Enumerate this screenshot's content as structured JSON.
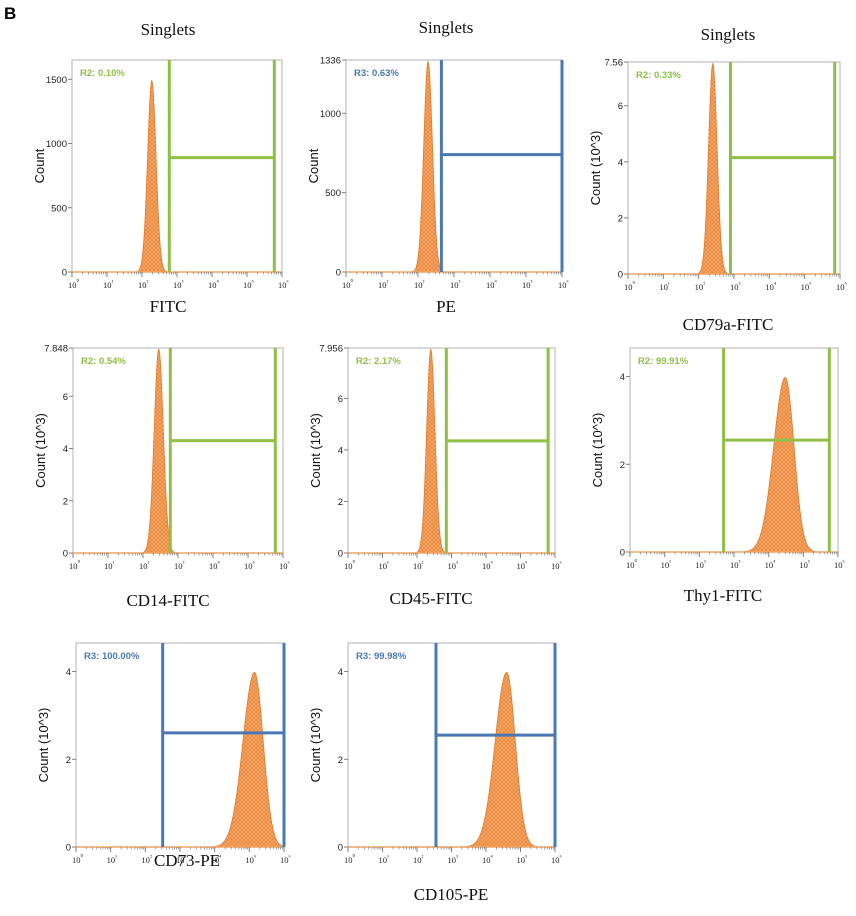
{
  "panel_label": "B",
  "colors": {
    "fill": "#f4a261",
    "hatch": "#e07a2c",
    "green_gate": "#8fbf45",
    "blue_gate": "#4a78b5",
    "axis": "#7f7f7f",
    "frame": "#b0b0b0"
  },
  "chart_data": [
    {
      "type": "area",
      "title": "Singlets",
      "xlabel": "FITC",
      "ylabel": "Count",
      "y_ticks": [
        "0",
        "500",
        "1000",
        "1500"
      ],
      "y_tick_values": [
        0,
        500,
        1000,
        1500
      ],
      "ylim": [
        0,
        1650
      ],
      "x_tick_exponents": [
        0,
        1,
        2,
        3,
        4,
        5,
        6
      ],
      "xlim_log10": [
        0,
        6
      ],
      "peak_log10": 2.28,
      "peak_width": 0.12,
      "gate": {
        "name": "R2",
        "label": "R2: 0.10%",
        "color": "green",
        "range_log10": [
          2.78,
          5.78
        ],
        "level": 890
      }
    },
    {
      "type": "area",
      "title": "Singlets",
      "xlabel": "PE",
      "ylabel": "Count",
      "y_ticks": [
        "0",
        "500",
        "1000",
        "1336"
      ],
      "y_tick_values": [
        0,
        500,
        1000,
        1336
      ],
      "ylim": [
        0,
        1336
      ],
      "x_tick_exponents": [
        0,
        1,
        2,
        3,
        4,
        5,
        6
      ],
      "xlim_log10": [
        0,
        6
      ],
      "peak_log10": 2.28,
      "peak_width": 0.12,
      "gate": {
        "name": "R3",
        "label": "R3: 0.63%",
        "color": "blue",
        "range_log10": [
          2.65,
          6.0
        ],
        "level": 740
      }
    },
    {
      "type": "area",
      "title": "Singlets",
      "xlabel": "CD79a-FITC",
      "ylabel": "Count (10^3)",
      "y_ticks": [
        "0",
        "2",
        "4",
        "6",
        "7.56"
      ],
      "y_tick_values": [
        0,
        2,
        4,
        6,
        7.56
      ],
      "ylim": [
        0,
        7.56
      ],
      "x_tick_exponents": [
        0,
        1,
        2,
        3,
        4,
        5,
        6
      ],
      "xlim_log10": [
        0,
        6
      ],
      "peak_log10": 2.4,
      "peak_width": 0.12,
      "gate": {
        "name": "R2",
        "label": "R2: 0.33%",
        "color": "green",
        "range_log10": [
          2.9,
          5.85
        ],
        "level": 4.15
      }
    },
    {
      "type": "area",
      "title": "",
      "xlabel": "CD14-FITC",
      "ylabel": "Count (10^3)",
      "y_ticks": [
        "0",
        "2",
        "4",
        "6",
        "7.848"
      ],
      "y_tick_values": [
        0,
        2,
        4,
        6,
        7.848
      ],
      "ylim": [
        0,
        7.848
      ],
      "x_tick_exponents": [
        0,
        1,
        2,
        3,
        4,
        5,
        6
      ],
      "xlim_log10": [
        0,
        6
      ],
      "peak_log10": 2.45,
      "peak_width": 0.13,
      "gate": {
        "name": "R2",
        "label": "R2: 0.54%",
        "color": "green",
        "range_log10": [
          2.78,
          5.78
        ],
        "level": 4.3
      }
    },
    {
      "type": "area",
      "title": "",
      "xlabel": "CD45-FITC",
      "ylabel": "Count (10^3)",
      "y_ticks": [
        "0",
        "2",
        "4",
        "6",
        "7.956"
      ],
      "y_tick_values": [
        0,
        2,
        4,
        6,
        7.956
      ],
      "ylim": [
        0,
        7.956
      ],
      "x_tick_exponents": [
        0,
        1,
        2,
        3,
        4,
        5,
        6
      ],
      "xlim_log10": [
        0,
        6
      ],
      "peak_log10": 2.4,
      "peak_width": 0.12,
      "gate": {
        "name": "R2",
        "label": "R2: 2.17%",
        "color": "green",
        "range_log10": [
          2.85,
          5.8
        ],
        "level": 4.35
      }
    },
    {
      "type": "area",
      "title": "",
      "xlabel": "Thy1-FITC",
      "ylabel": "Count (10^3)",
      "y_ticks": [
        "0",
        "2",
        "4"
      ],
      "y_tick_values": [
        0,
        2,
        4
      ],
      "ylim": [
        0,
        4.65
      ],
      "x_tick_exponents": [
        0,
        1,
        2,
        3,
        4,
        5,
        6
      ],
      "xlim_log10": [
        0,
        6
      ],
      "peak_log10": 4.48,
      "peak_width": 0.25,
      "gate": {
        "name": "R2",
        "label": "R2: 99.91%",
        "color": "green",
        "range_log10": [
          2.7,
          5.75
        ],
        "level": 2.55
      }
    },
    {
      "type": "area",
      "title": "",
      "xlabel": "CD73-PE",
      "ylabel": "Count (10^3)",
      "y_ticks": [
        "0",
        "2",
        "4"
      ],
      "y_tick_values": [
        0,
        2,
        4
      ],
      "ylim": [
        0,
        4.65
      ],
      "x_tick_exponents": [
        0,
        1,
        2,
        3,
        4,
        5,
        6
      ],
      "xlim_log10": [
        0,
        6
      ],
      "peak_log10": 5.15,
      "peak_width": 0.25,
      "gate": {
        "name": "R3",
        "label": "R3: 100.00%",
        "color": "blue",
        "range_log10": [
          2.5,
          6.0
        ],
        "level": 2.6
      }
    },
    {
      "type": "area",
      "title": "",
      "xlabel": "CD105-PE",
      "ylabel": "Count (10^3)",
      "y_ticks": [
        "0",
        "2",
        "4"
      ],
      "y_tick_values": [
        0,
        2,
        4
      ],
      "ylim": [
        0,
        4.65
      ],
      "x_tick_exponents": [
        0,
        1,
        2,
        3,
        4,
        5,
        6
      ],
      "xlim_log10": [
        0,
        6
      ],
      "peak_log10": 4.6,
      "peak_width": 0.25,
      "gate": {
        "name": "R3",
        "label": "R3: 99.98%",
        "color": "blue",
        "range_log10": [
          2.55,
          6.0
        ],
        "level": 2.55
      }
    }
  ]
}
